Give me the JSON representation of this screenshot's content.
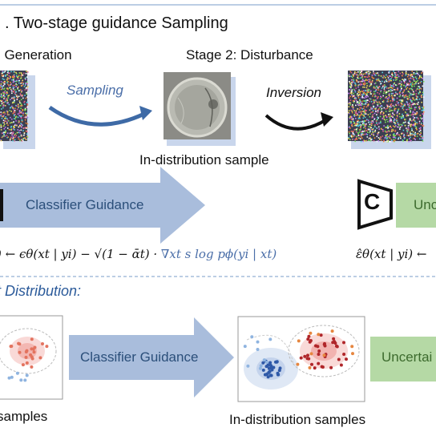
{
  "header": {
    "title": ". Two-stage guidance Sampling",
    "stage1_label": ": Generation",
    "stage2_label": "Stage 2: Disturbance"
  },
  "arrows": {
    "sampling_label": "Sampling",
    "inversion_label": "Inversion"
  },
  "captions": {
    "in_distribution_sample": "In-distribution sample",
    "classifier_guidance_top": "Classifier Guidance",
    "uncertainty_top": "Unc",
    "classifier_letter": "C",
    "formula_left_part": ") ← ϵθ(xt | yi) − √(1 − ᾱt) · ",
    "formula_grad_part": "∇xt s log pϕ(yi | xt)",
    "formula_right": "ε̂θ(xt | yi) ←",
    "ood_section": "t Distribution:",
    "classifier_guidance_bottom": "Classifier Guidance",
    "uncertainty_bottom": "Uncertai",
    "samples_left": "samples",
    "in_distribution_samples": "In-distribution samples"
  },
  "colors": {
    "blue_arrow": "#a9bddc",
    "green_box": "#b5d9a5",
    "section_rule": "#7a9cc8"
  }
}
